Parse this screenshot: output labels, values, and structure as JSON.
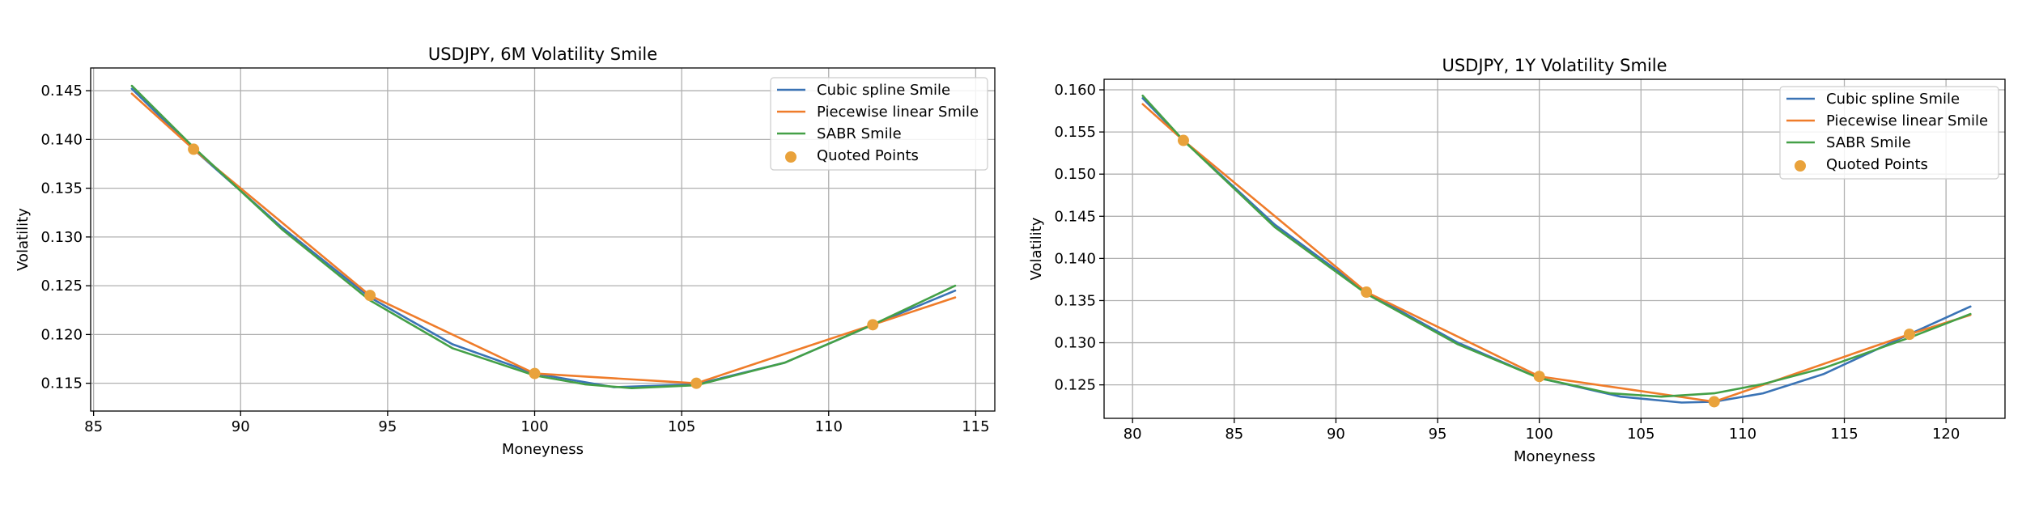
{
  "figure": {
    "background": "#ffffff"
  },
  "colors": {
    "cubic": "#3a73b5",
    "linear": "#ef7c2a",
    "sabr": "#44a047",
    "quoted": "#e9a23b",
    "grid": "#b0b0b0",
    "axis": "#000000"
  },
  "chart_data": [
    {
      "type": "line",
      "title": "USDJPY, 6M Volatility Smile",
      "xlabel": "Moneyness",
      "ylabel": "Volatility",
      "xlim": [
        84.9,
        115.65
      ],
      "ylim": [
        0.11215,
        0.14733
      ],
      "xticks": [
        85,
        90,
        95,
        100,
        105,
        110,
        115
      ],
      "xtick_labels": [
        "85",
        "90",
        "95",
        "100",
        "105",
        "110",
        "115"
      ],
      "yticks": [
        0.115,
        0.12,
        0.125,
        0.13,
        0.135,
        0.14,
        0.145
      ],
      "ytick_labels": [
        "0.115",
        "0.120",
        "0.125",
        "0.130",
        "0.135",
        "0.140",
        "0.145"
      ],
      "grid": true,
      "legend_position": "top-right",
      "series": [
        {
          "name": "Cubic spline Smile",
          "color_key": "cubic",
          "kind": "line",
          "x": [
            86.3,
            88.4,
            91.4,
            94.4,
            97.2,
            100.0,
            102.7,
            105.5,
            108.5,
            111.5,
            114.3
          ],
          "y": [
            0.1452,
            0.139,
            0.131,
            0.1238,
            0.119,
            0.116,
            0.1146,
            0.1149,
            0.1171,
            0.121,
            0.1245
          ]
        },
        {
          "name": "Piecewise linear Smile",
          "color_key": "linear",
          "kind": "line",
          "x": [
            86.3,
            88.4,
            94.4,
            100.0,
            105.5,
            111.5,
            114.3
          ],
          "y": [
            0.1447,
            0.139,
            0.124,
            0.116,
            0.115,
            0.121,
            0.1238
          ]
        },
        {
          "name": "SABR Smile",
          "color_key": "sabr",
          "kind": "line",
          "x": [
            86.3,
            88.4,
            91.4,
            94.4,
            97.2,
            100.0,
            101.7,
            103.3,
            105.5,
            108.5,
            111.5,
            114.3
          ],
          "y": [
            0.1455,
            0.1392,
            0.1308,
            0.1235,
            0.1186,
            0.1158,
            0.1149,
            0.1145,
            0.1148,
            0.1171,
            0.121,
            0.125
          ]
        },
        {
          "name": "Quoted Points",
          "color_key": "quoted",
          "kind": "scatter",
          "x": [
            88.4,
            94.4,
            100.0,
            105.5,
            111.5
          ],
          "y": [
            0.139,
            0.124,
            0.116,
            0.115,
            0.121
          ]
        }
      ]
    },
    {
      "type": "line",
      "title": "USDJPY, 1Y Volatility Smile",
      "xlabel": "Moneyness",
      "ylabel": "Volatility",
      "xlim": [
        78.6,
        122.9
      ],
      "ylim": [
        0.12103,
        0.16125
      ],
      "xticks": [
        80,
        85,
        90,
        95,
        100,
        105,
        110,
        115,
        120
      ],
      "xtick_labels": [
        "80",
        "85",
        "90",
        "95",
        "100",
        "105",
        "110",
        "115",
        "120"
      ],
      "yticks": [
        0.125,
        0.13,
        0.135,
        0.14,
        0.145,
        0.15,
        0.155,
        0.16
      ],
      "ytick_labels": [
        "0.125",
        "0.130",
        "0.135",
        "0.140",
        "0.145",
        "0.150",
        "0.155",
        "0.160"
      ],
      "grid": true,
      "legend_position": "top-right",
      "series": [
        {
          "name": "Cubic spline Smile",
          "color_key": "cubic",
          "kind": "line",
          "x": [
            80.5,
            82.5,
            87.0,
            91.5,
            96.0,
            100.0,
            104.0,
            107.0,
            108.6,
            111.0,
            114.0,
            118.2,
            121.2
          ],
          "y": [
            0.159,
            0.154,
            0.144,
            0.136,
            0.13,
            0.1258,
            0.1236,
            0.1229,
            0.123,
            0.124,
            0.1263,
            0.131,
            0.1343
          ]
        },
        {
          "name": "Piecewise linear Smile",
          "color_key": "linear",
          "kind": "line",
          "x": [
            80.5,
            82.5,
            91.5,
            100.0,
            108.6,
            118.2,
            121.2
          ],
          "y": [
            0.1583,
            0.154,
            0.136,
            0.126,
            0.123,
            0.131,
            0.1333
          ]
        },
        {
          "name": "SABR Smile",
          "color_key": "sabr",
          "kind": "line",
          "x": [
            80.5,
            82.5,
            87.0,
            91.5,
            96.0,
            100.0,
            103.5,
            106.0,
            108.6,
            111.0,
            114.0,
            118.2,
            121.2
          ],
          "y": [
            0.1593,
            0.154,
            0.1437,
            0.1358,
            0.1298,
            0.1258,
            0.124,
            0.1236,
            0.124,
            0.1251,
            0.127,
            0.1306,
            0.1334
          ]
        },
        {
          "name": "Quoted Points",
          "color_key": "quoted",
          "kind": "scatter",
          "x": [
            82.5,
            91.5,
            100.0,
            108.6,
            118.2
          ],
          "y": [
            0.154,
            0.136,
            0.126,
            0.123,
            0.131
          ]
        }
      ]
    }
  ]
}
